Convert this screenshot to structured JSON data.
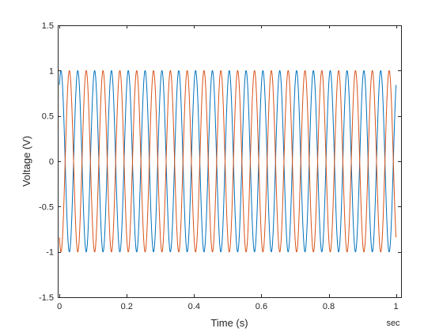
{
  "chart_data": {
    "type": "line",
    "title": "",
    "xlabel": "Time (s)",
    "ylabel": "Voltage (V)",
    "xunit_label": "sec",
    "xlim": [
      -0.005,
      1.015
    ],
    "ylim": [
      -1.5,
      1.5
    ],
    "xticks": [
      0,
      0.2,
      0.4,
      0.6,
      0.8,
      1
    ],
    "xtick_labels": [
      "0",
      "0.2",
      "0.4",
      "0.6",
      "0.8",
      "1"
    ],
    "yticks": [
      -1.5,
      -1,
      -0.5,
      0,
      0.5,
      1,
      1.5
    ],
    "ytick_labels": [
      "-1.5",
      "-1",
      "-0.5",
      "0",
      "0.5",
      "1",
      "1.5"
    ],
    "grid": false,
    "series": [
      {
        "color": "#0072BD",
        "x_range": [
          0,
          1
        ],
        "function": "sin",
        "frequency_hz": 20,
        "phase_rad": 1,
        "amplitude": 1
      },
      {
        "color": "#D95319",
        "x_range": [
          0,
          1
        ],
        "function": "sin",
        "frequency_hz": 20,
        "phase_rad": 4.14,
        "amplitude": 1
      }
    ]
  }
}
